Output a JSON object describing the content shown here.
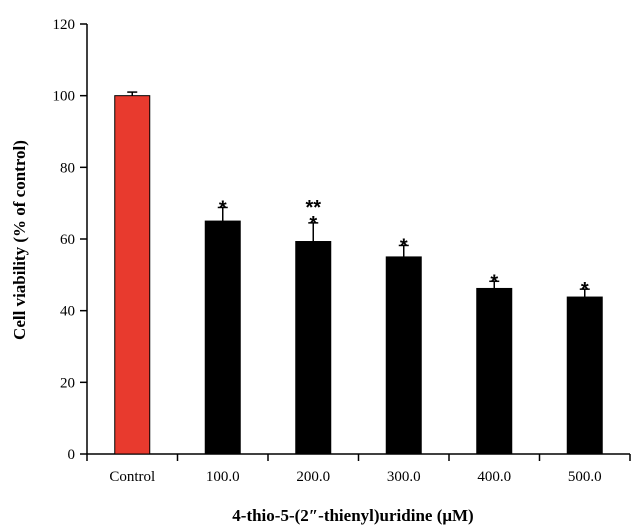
{
  "chart_data": {
    "type": "bar",
    "categories": [
      "Control",
      "100.0",
      "200.0",
      "300.0",
      "400.0",
      "500.0"
    ],
    "values": [
      100,
      65,
      59.3,
      55,
      46.2,
      43.8
    ],
    "errors": [
      1.0,
      3.8,
      5.2,
      3.2,
      2.0,
      2.2
    ],
    "significance": [
      [],
      [
        "*"
      ],
      [
        "**",
        "*"
      ],
      [
        "*"
      ],
      [
        "*"
      ],
      [
        "*"
      ]
    ],
    "bar_colors": [
      "#e83a2e",
      "#000000",
      "#000000",
      "#000000",
      "#000000",
      "#000000"
    ],
    "xlabel": "4-thio-5-(2″-thienyl)uridine  (μM)",
    "ylabel": "Cell viability (% of control)",
    "ylim": [
      0,
      120
    ],
    "yticks": [
      0,
      20,
      40,
      60,
      80,
      100,
      120
    ],
    "grid": false
  }
}
